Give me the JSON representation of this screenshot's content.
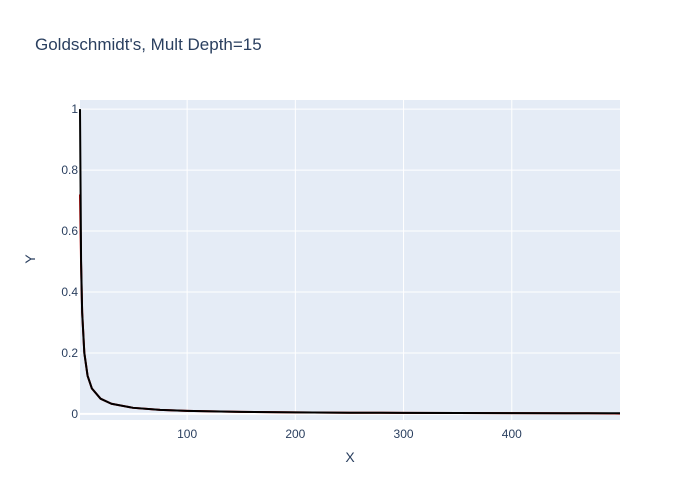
{
  "chart_data": {
    "type": "line",
    "title": "Goldschmidt's, Mult Depth=15",
    "xlabel": "X",
    "ylabel": "Y",
    "xlim": [
      1,
      500
    ],
    "ylim": [
      -0.02,
      1.03
    ],
    "xticks": [
      100,
      200,
      300,
      400
    ],
    "yticks": [
      0,
      0.2,
      0.4,
      0.6,
      0.8,
      1
    ],
    "ytick_labels": [
      "0",
      "0.2",
      "0.4",
      "0.6",
      "0.8",
      "1"
    ],
    "grid": true,
    "legend": "none",
    "colors": {
      "plot_bg": "#e5ecf6",
      "grid": "#ffffff",
      "text": "#2a3f5f"
    },
    "series": [
      {
        "color": "#cc0000",
        "x": [
          1,
          2,
          3,
          5,
          8,
          12,
          20,
          30,
          50,
          75,
          100,
          150,
          200,
          250,
          300,
          350,
          400,
          450,
          470,
          480,
          490,
          495,
          500
        ],
        "y": [
          0.72,
          0.49,
          0.333,
          0.2,
          0.125,
          0.0833,
          0.05,
          0.0333,
          0.02,
          0.0133,
          0.01,
          0.00667,
          0.005,
          0.004,
          0.00333,
          0.00286,
          0.0025,
          0.00222,
          0.0021,
          0.0019,
          0.0015,
          0.0012,
          0.0008
        ]
      },
      {
        "color": "#000000",
        "x": [
          1,
          2,
          3,
          5,
          8,
          12,
          20,
          30,
          50,
          75,
          100,
          150,
          200,
          250,
          300,
          350,
          400,
          450,
          500
        ],
        "y": [
          1.0,
          0.5,
          0.333,
          0.2,
          0.125,
          0.0833,
          0.05,
          0.0333,
          0.02,
          0.0133,
          0.01,
          0.00667,
          0.005,
          0.004,
          0.00333,
          0.00286,
          0.0025,
          0.00222,
          0.002
        ]
      }
    ]
  }
}
